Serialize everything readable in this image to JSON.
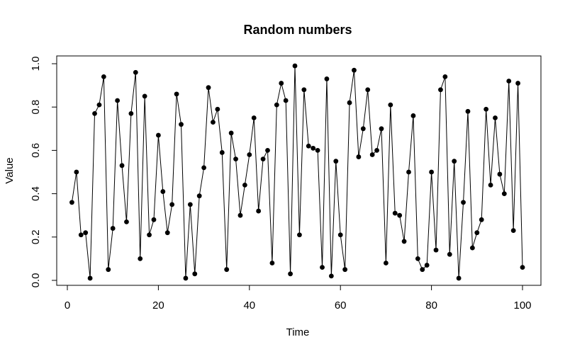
{
  "chart_data": {
    "type": "line",
    "title": "Random numbers",
    "xlabel": "Time",
    "ylabel": "Value",
    "xlim": [
      0,
      100
    ],
    "ylim": [
      0,
      1
    ],
    "x_ticks": [
      0,
      20,
      40,
      60,
      80,
      100
    ],
    "y_ticks": [
      0.0,
      0.2,
      0.4,
      0.6,
      0.8,
      1.0
    ],
    "y_tick_labels": [
      "0.0",
      "0.2",
      "0.4",
      "0.6",
      "0.8",
      "1.0"
    ],
    "grid": false,
    "line_color": "#000000",
    "marker": "filled-circle",
    "x": [
      1,
      2,
      3,
      4,
      5,
      6,
      7,
      8,
      9,
      10,
      11,
      12,
      13,
      14,
      15,
      16,
      17,
      18,
      19,
      20,
      21,
      22,
      23,
      24,
      25,
      26,
      27,
      28,
      29,
      30,
      31,
      32,
      33,
      34,
      35,
      36,
      37,
      38,
      39,
      40,
      41,
      42,
      43,
      44,
      45,
      46,
      47,
      48,
      49,
      50,
      51,
      52,
      53,
      54,
      55,
      56,
      57,
      58,
      59,
      60,
      61,
      62,
      63,
      64,
      65,
      66,
      67,
      68,
      69,
      70,
      71,
      72,
      73,
      74,
      75,
      76,
      77,
      78,
      79,
      80,
      81,
      82,
      83,
      84,
      85,
      86,
      87,
      88,
      89,
      90,
      91,
      92,
      93,
      94,
      95,
      96,
      97,
      98,
      99,
      100
    ],
    "values": [
      0.36,
      0.5,
      0.21,
      0.22,
      0.01,
      0.77,
      0.81,
      0.94,
      0.05,
      0.24,
      0.83,
      0.53,
      0.27,
      0.77,
      0.96,
      0.1,
      0.85,
      0.21,
      0.28,
      0.67,
      0.41,
      0.22,
      0.35,
      0.86,
      0.72,
      0.01,
      0.35,
      0.03,
      0.39,
      0.52,
      0.89,
      0.73,
      0.79,
      0.59,
      0.05,
      0.68,
      0.56,
      0.3,
      0.44,
      0.58,
      0.75,
      0.32,
      0.56,
      0.6,
      0.08,
      0.81,
      0.91,
      0.83,
      0.03,
      0.99,
      0.21,
      0.88,
      0.62,
      0.61,
      0.6,
      0.06,
      0.93,
      0.02,
      0.55,
      0.21,
      0.05,
      0.82,
      0.97,
      0.57,
      0.7,
      0.88,
      0.58,
      0.6,
      0.7,
      0.08,
      0.81,
      0.31,
      0.3,
      0.18,
      0.5,
      0.76,
      0.1,
      0.05,
      0.07,
      0.5,
      0.14,
      0.88,
      0.94,
      0.12,
      0.55,
      0.01,
      0.36,
      0.78,
      0.15,
      0.22,
      0.28,
      0.79,
      0.44,
      0.75,
      0.49,
      0.4,
      0.92,
      0.23,
      0.91,
      0.06
    ]
  }
}
